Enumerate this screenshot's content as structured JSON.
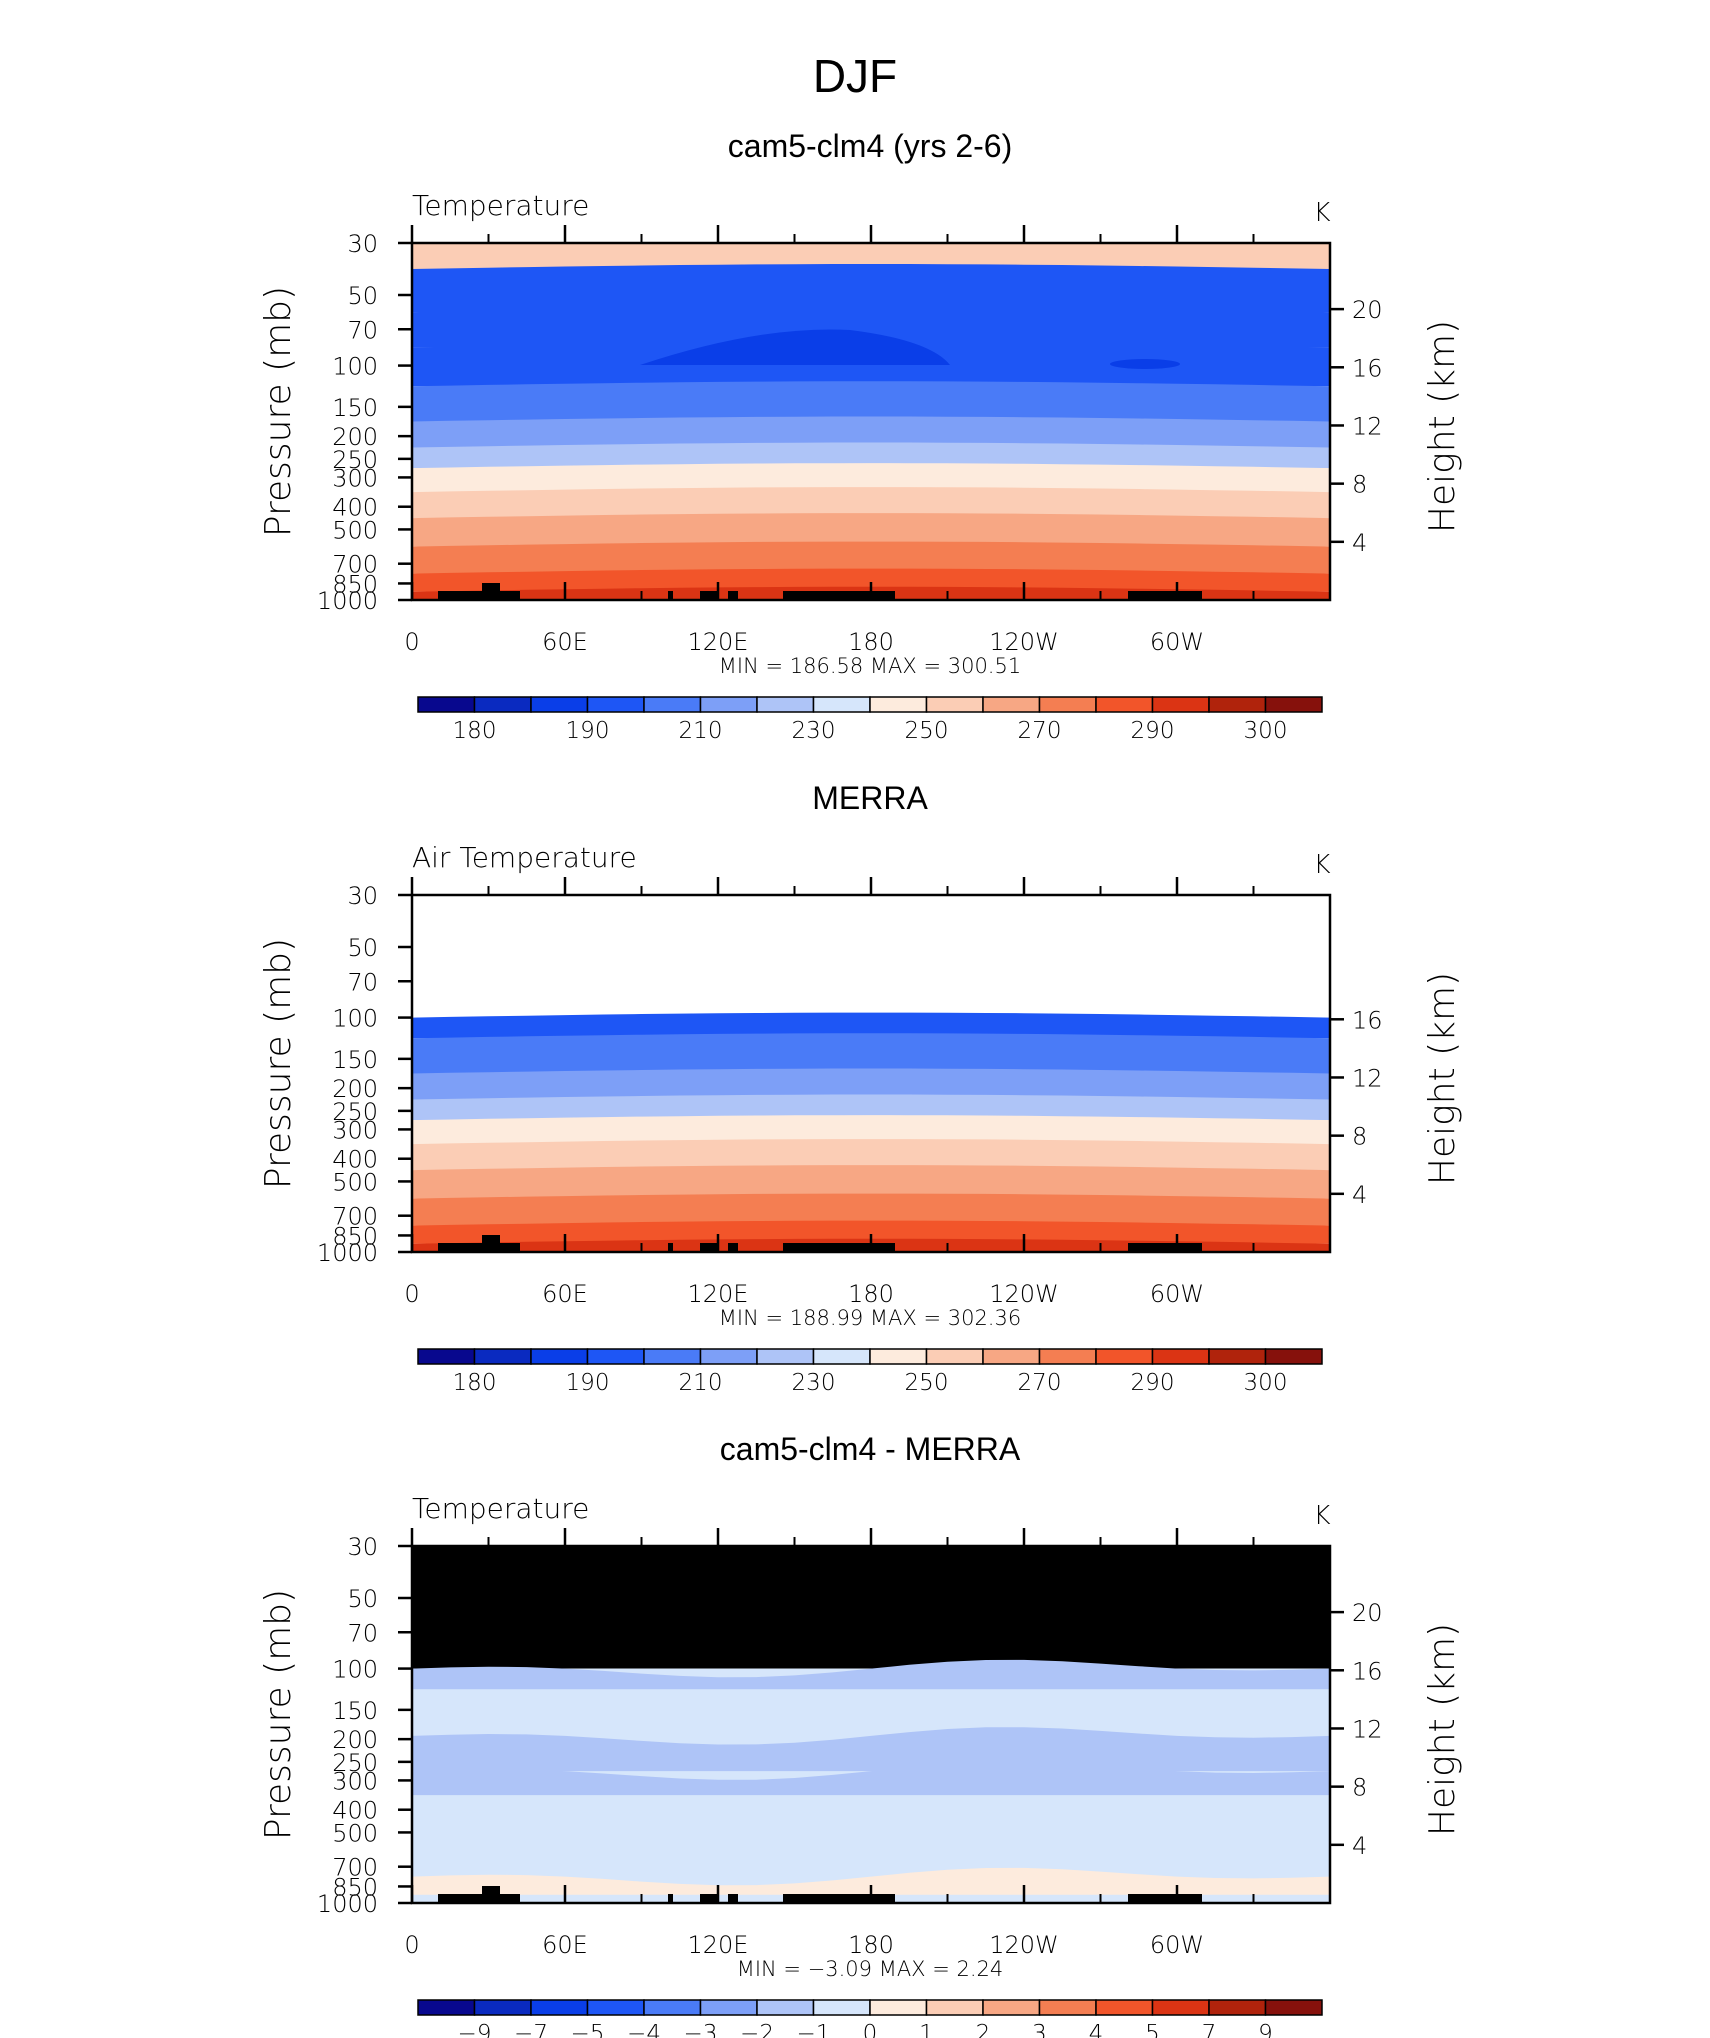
{
  "figure": {
    "title": "DJF"
  },
  "chart_data": [
    {
      "type": "heatmap",
      "panel_title": "cam5-clm4 (yrs 2-6)",
      "field_label": "Temperature",
      "units": "K",
      "ylabel": "Pressure (mb)",
      "ylabel_right": "Height (km)",
      "x_ticks": [
        "0",
        "60E",
        "120E",
        "180",
        "120W",
        "60W"
      ],
      "y_ticks": [
        "30",
        "50",
        "70",
        "100",
        "150",
        "200",
        "250",
        "300",
        "400",
        "500",
        "700",
        "850",
        "1000"
      ],
      "y_right_ticks": [
        "20",
        "16",
        "12",
        "8",
        "4"
      ],
      "min_max_text": "MIN =  186.58   MAX =  300.51",
      "stats": {
        "min": 186.58,
        "max": 300.51
      },
      "colorbar_labels": [
        "180",
        "190",
        "210",
        "230",
        "250",
        "270",
        "290",
        "300"
      ],
      "profile": [
        {
          "p": 30,
          "level": 9
        },
        {
          "p": 50,
          "level": 3
        },
        {
          "p": 70,
          "level": 3
        },
        {
          "p": 100,
          "level": 3
        },
        {
          "p": 150,
          "level": 4
        },
        {
          "p": 200,
          "level": 5
        },
        {
          "p": 250,
          "level": 6
        },
        {
          "p": 300,
          "level": 8
        },
        {
          "p": 400,
          "level": 9
        },
        {
          "p": 500,
          "level": 10
        },
        {
          "p": 700,
          "level": 11
        },
        {
          "p": 850,
          "level": 12
        },
        {
          "p": 1000,
          "level": 13
        }
      ]
    },
    {
      "type": "heatmap",
      "panel_title": "MERRA",
      "field_label": "Air Temperature",
      "units": "K",
      "ylabel": "Pressure (mb)",
      "ylabel_right": "Height (km)",
      "x_ticks": [
        "0",
        "60E",
        "120E",
        "180",
        "120W",
        "60W"
      ],
      "y_ticks": [
        "30",
        "50",
        "70",
        "100",
        "150",
        "200",
        "250",
        "300",
        "400",
        "500",
        "700",
        "850",
        "1000"
      ],
      "y_right_ticks": [
        "16",
        "12",
        "8",
        "4"
      ],
      "min_max_text": "MIN =  188.99   MAX =  302.36",
      "stats": {
        "min": 188.99,
        "max": 302.36
      },
      "colorbar_labels": [
        "180",
        "190",
        "210",
        "230",
        "250",
        "270",
        "290",
        "300"
      ],
      "data_top_p": 100,
      "profile": [
        {
          "p": 100,
          "level": 3
        },
        {
          "p": 150,
          "level": 4
        },
        {
          "p": 200,
          "level": 5
        },
        {
          "p": 250,
          "level": 6
        },
        {
          "p": 300,
          "level": 8
        },
        {
          "p": 400,
          "level": 9
        },
        {
          "p": 500,
          "level": 10
        },
        {
          "p": 700,
          "level": 11
        },
        {
          "p": 850,
          "level": 12
        },
        {
          "p": 1000,
          "level": 13
        }
      ]
    },
    {
      "type": "heatmap",
      "panel_title": "cam5-clm4 - MERRA",
      "field_label": "Temperature",
      "units": "K",
      "ylabel": "Pressure (mb)",
      "ylabel_right": "Height (km)",
      "x_ticks": [
        "0",
        "60E",
        "120E",
        "180",
        "120W",
        "60W"
      ],
      "y_ticks": [
        "30",
        "50",
        "70",
        "100",
        "150",
        "200",
        "250",
        "300",
        "400",
        "500",
        "700",
        "850",
        "1000"
      ],
      "y_right_ticks": [
        "20",
        "16",
        "12",
        "8",
        "4"
      ],
      "min_max_text": "MIN =   −3.09   MAX =    2.24",
      "stats": {
        "min": -3.09,
        "max": 2.24
      },
      "colorbar_labels": [
        "−9",
        "−7",
        "−5",
        "−4",
        "−3",
        "−2",
        "−1",
        "0",
        "1",
        "2",
        "3",
        "4",
        "5",
        "7",
        "9"
      ],
      "missing_above_p": 100,
      "background_level": 7,
      "profile": [
        {
          "p": 100,
          "level": 6
        },
        {
          "p": 150,
          "level": 7
        },
        {
          "p": 250,
          "level": 6
        },
        {
          "p": 300,
          "level": 6
        },
        {
          "p": 400,
          "level": 7
        },
        {
          "p": 500,
          "level": 7
        },
        {
          "p": 700,
          "level": 7
        },
        {
          "p": 850,
          "level": 8
        },
        {
          "p": 1000,
          "level": 7
        }
      ]
    }
  ],
  "colors": {
    "palette": [
      "#08088e",
      "#0a2ac0",
      "#0a3ee8",
      "#1e56f5",
      "#4a7bf7",
      "#7d9ff7",
      "#aec4f7",
      "#d6e6fb",
      "#fdebdd",
      "#fbcdb5",
      "#f7a784",
      "#f47e52",
      "#f2552a",
      "#db3414",
      "#b0230c",
      "#86110c"
    ],
    "missing": "#000000",
    "topography": "#000000"
  }
}
